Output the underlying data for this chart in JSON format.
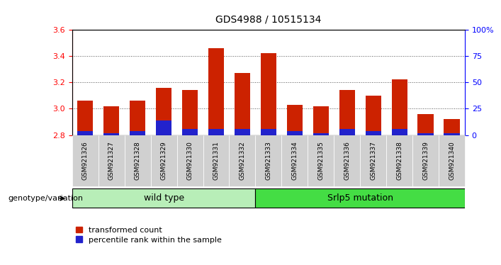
{
  "title": "GDS4988 / 10515134",
  "samples": [
    "GSM921326",
    "GSM921327",
    "GSM921328",
    "GSM921329",
    "GSM921330",
    "GSM921331",
    "GSM921332",
    "GSM921333",
    "GSM921334",
    "GSM921335",
    "GSM921336",
    "GSM921337",
    "GSM921338",
    "GSM921339",
    "GSM921340"
  ],
  "transformed_counts": [
    3.06,
    3.02,
    3.06,
    3.16,
    3.14,
    3.46,
    3.27,
    3.42,
    3.03,
    3.02,
    3.14,
    3.1,
    3.22,
    2.96,
    2.92
  ],
  "percentile_ranks": [
    4,
    2,
    4,
    14,
    6,
    6,
    6,
    6,
    4,
    2,
    6,
    4,
    6,
    2,
    2
  ],
  "ylim_left": [
    2.8,
    3.6
  ],
  "ylim_right": [
    0,
    100
  ],
  "yticks_left": [
    2.8,
    3.0,
    3.2,
    3.4,
    3.6
  ],
  "yticks_right": [
    0,
    25,
    50,
    75,
    100
  ],
  "ytick_labels_right": [
    "0",
    "25",
    "50",
    "75",
    "100%"
  ],
  "bar_color_red": "#cc2200",
  "bar_color_blue": "#2222cc",
  "wild_type_count": 7,
  "mutation_count": 8,
  "wild_type_label": "wild type",
  "mutation_label": "Srlp5 mutation",
  "group_label": "genotype/variation",
  "legend_red": "transformed count",
  "legend_blue": "percentile rank within the sample",
  "background_color": "#ffffff",
  "plot_bg": "#ffffff",
  "tick_cell_bg": "#d0d0d0",
  "group_bar_color_wt": "#b8eeb8",
  "group_bar_color_mut": "#44dd44",
  "dotted_line_color": "#555555",
  "bar_width": 0.6
}
